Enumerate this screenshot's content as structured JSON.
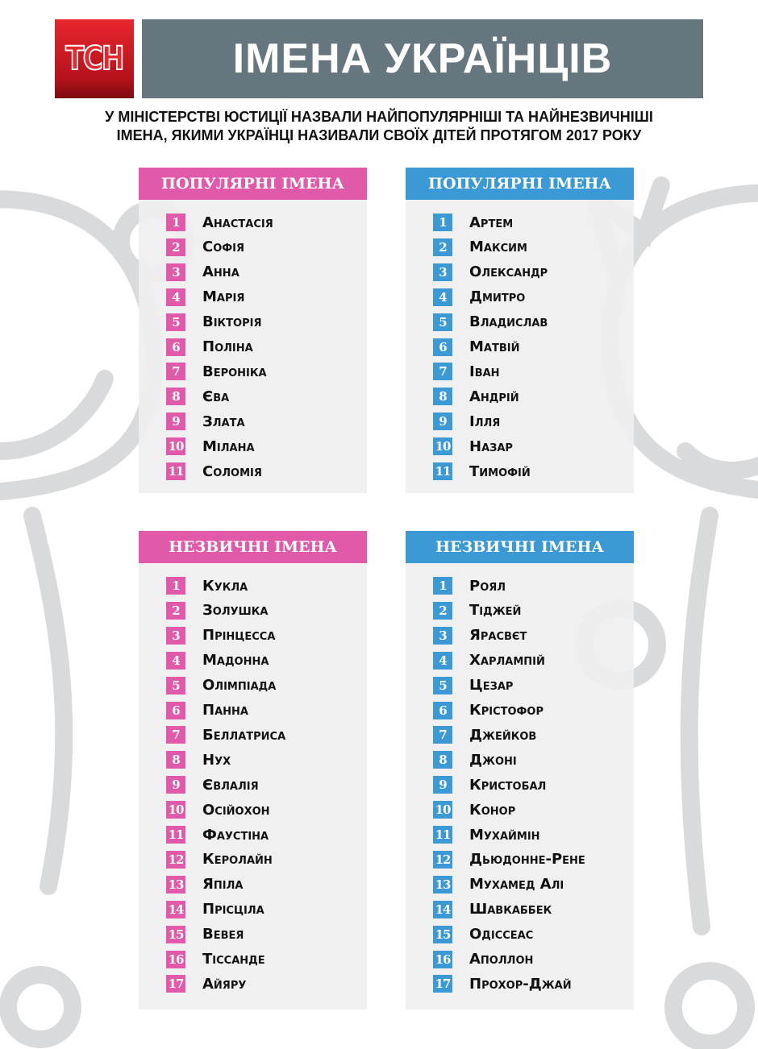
{
  "logo": {
    "text": "ТСН",
    "color": "#e8262e"
  },
  "header": {
    "title": "ІМЕНА УКРАЇНЦІВ",
    "bg_color": "#66767f"
  },
  "subtitle_lines": [
    "У МІНІСТЕРСТВІ ЮСТИЦІЇ НАЗВАЛИ НАЙПОПУЛЯРНІШІ ТА НАЙНЕЗВИЧНІШІ",
    "ІМЕНА, ЯКИМИ УКРАЇНЦІ НАЗИВАЛИ СВОЇХ ДІТЕЙ ПРОТЯГОМ 2017 РОКУ"
  ],
  "colors": {
    "girls": "#e05aa9",
    "boys": "#3b9ad5",
    "panel": "#efefef"
  },
  "panels": [
    {
      "title": "ПОПУЛЯРНІ ІМЕНА",
      "color": "#e05aa9",
      "names": [
        "Анастасія",
        "Софія",
        "Анна",
        "Марія",
        "Вікторія",
        "Поліна",
        "Вероніка",
        "Єва",
        "Злата",
        "Мілана",
        "Соломія"
      ]
    },
    {
      "title": "ПОПУЛЯРНІ ІМЕНА",
      "color": "#3b9ad5",
      "names": [
        "Артем",
        "Максим",
        "Олександр",
        "Дмитро",
        "Владислав",
        "Матвій",
        "Іван",
        "Андрій",
        "Ілля",
        "Назар",
        "Тимофій"
      ]
    },
    {
      "title": "НЕЗВИЧНІ ІМЕНА",
      "color": "#e05aa9",
      "names": [
        "Кукла",
        "Золушка",
        "Прінцесса",
        "Мадонна",
        "Олімпіада",
        "Панна",
        "Беллатриса",
        "Нух",
        "Євлалія",
        "Осійохон",
        "Фаустіна",
        "Керолайн",
        "Япіла",
        "Прісціла",
        "Вевея",
        "Тіссанде",
        "Айяру"
      ]
    },
    {
      "title": "НЕЗВИЧНІ ІМЕНА",
      "color": "#3b9ad5",
      "names": [
        "Роял",
        "Тіджей",
        "Ярасвєт",
        "Харлампій",
        "Цезар",
        "Крістофор",
        "Джейков",
        "Джоні",
        "Кристобал",
        "Конор",
        "Мухаймін",
        "Дьюдонне-Рене",
        "Мухамед Алі",
        "Шавкаббек",
        "Одіссеас",
        "Аполлон",
        "Прохор-Джай"
      ]
    }
  ]
}
